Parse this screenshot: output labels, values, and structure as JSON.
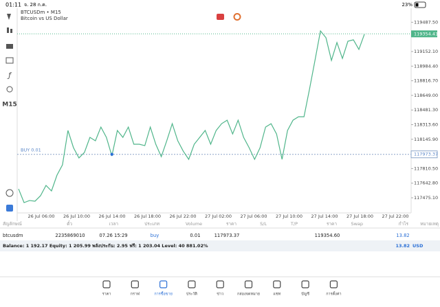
{
  "status": {
    "time": "01:11",
    "date": "จ. 28 ก.ค.",
    "battery": "23%"
  },
  "sidebar": {
    "timeframe": "M15"
  },
  "chart_data": {
    "type": "line",
    "title": "BTCUSDm • M15",
    "subtitle": "Bitcoin vs US Dollar",
    "color": "#4fb58a",
    "values": [
      117577,
      117420,
      117444,
      117436,
      117499,
      117617,
      117554,
      117735,
      117853,
      118247,
      118050,
      117932,
      117995,
      118168,
      118129,
      118286,
      118168,
      117955,
      118247,
      118168,
      118286,
      118089,
      118089,
      118073,
      118286,
      118089,
      117947,
      118129,
      118325,
      118129,
      118010,
      117916,
      118089,
      118168,
      118247,
      118089,
      118247,
      118325,
      118365,
      118207,
      118365,
      118168,
      118050,
      117916,
      118050,
      118286,
      118325,
      118207,
      117916,
      118247,
      118365,
      118404,
      118404,
      118719,
      119050,
      119388,
      119310,
      119050,
      119255,
      119073,
      119270,
      119286,
      119176,
      119349
    ],
    "ylim": [
      117302,
      119648
    ],
    "yticks": [
      {
        "value": 119487.5,
        "label": "119487.50"
      },
      {
        "value": 119152.1,
        "label": "119152.10"
      },
      {
        "value": 118984.4,
        "label": "118984.40"
      },
      {
        "value": 118816.7,
        "label": "118816.70"
      },
      {
        "value": 118649.0,
        "label": "118649.00"
      },
      {
        "value": 118481.3,
        "label": "118481.30"
      },
      {
        "value": 118313.6,
        "label": "118313.60"
      },
      {
        "value": 118145.9,
        "label": "118145.90"
      },
      {
        "value": 117810.5,
        "label": "117810.50"
      },
      {
        "value": 117642.8,
        "label": "117642.80"
      },
      {
        "value": 117475.1,
        "label": "117475.10"
      }
    ],
    "xticks": [
      "26 Jul 06:00",
      "26 Jul 10:00",
      "26 Jul 14:00",
      "26 Jul 18:00",
      "26 Jul 22:00",
      "27 Jul 02:00",
      "27 Jul 06:00",
      "27 Jul 10:00",
      "27 Jul 14:00",
      "27 Jul 18:00",
      "27 Jul 22:00"
    ],
    "current_price": 119354.41,
    "buy": {
      "label": "BUY 0.01",
      "price": 117973.37,
      "index": 17
    }
  },
  "table": {
    "headers": [
      "สัญลักษณ์",
      "ตั๋ว",
      "เวลา",
      "ประเภท",
      "Volume",
      "ราคา",
      "S/L",
      "T/P",
      "ราคา",
      "Swap",
      "กำไร",
      "หมายเหตุ"
    ],
    "row": {
      "symbol": "btcusdm",
      "ticket": "2235869010",
      "time": "07.26 15:29",
      "type": "buy",
      "volume": "0.01",
      "open": "117973.37",
      "price": "119354.60",
      "profit": "13.82"
    },
    "balance": "Balance: 1 192.17 Equity: 1 205.99 พลังประกัน: 2.95 ฟรี: 1 203.04 Level: 40 881.02%",
    "total": "13.82",
    "currency": "USD"
  },
  "nav": [
    "ราคา",
    "กราฟ",
    "การซื้อขาย",
    "ประวัติ",
    "ข่าว",
    "กล่องจดหมาย",
    "แชท",
    "บัญชี",
    "การตั้งค่า"
  ]
}
